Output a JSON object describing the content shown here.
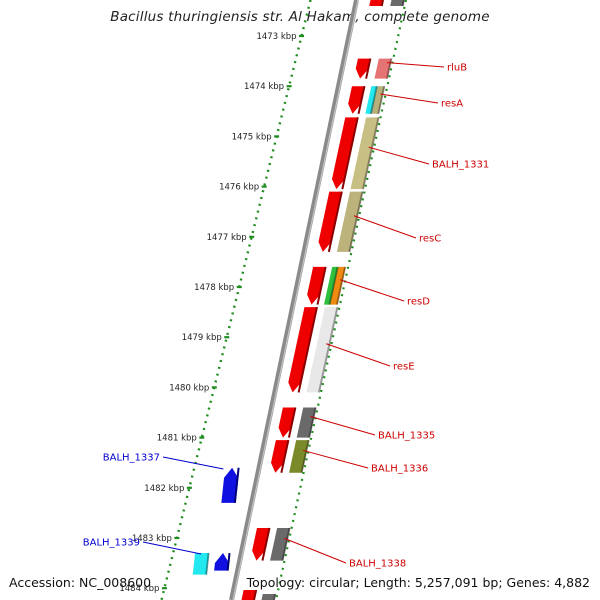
{
  "map": {
    "title": "Bacillus thuringiensis str. Al Hakam, complete genome"
  },
  "footer": {
    "accession": "Accession: NC_008600",
    "stats": "Topology: circular; Length: 5,257,091 bp; Genes: 4,882"
  },
  "ticks": [
    {
      "kbp": 1473,
      "label": "1473 kbp"
    },
    {
      "kbp": 1474,
      "label": "1474 kbp"
    },
    {
      "kbp": 1475,
      "label": "1475 kbp"
    },
    {
      "kbp": 1476,
      "label": "1476 kbp"
    },
    {
      "kbp": 1477,
      "label": "1477 kbp"
    },
    {
      "kbp": 1478,
      "label": "1478 kbp"
    },
    {
      "kbp": 1479,
      "label": "1479 kbp"
    },
    {
      "kbp": 1480,
      "label": "1480 kbp"
    },
    {
      "kbp": 1481,
      "label": "1481 kbp"
    },
    {
      "kbp": 1482,
      "label": "1482 kbp"
    },
    {
      "kbp": 1483,
      "label": "1483 kbp"
    },
    {
      "kbp": 1484,
      "label": "1484 kbp"
    }
  ],
  "genes": [
    {
      "name": "rluB",
      "strand": "+",
      "start_kbp": 1473.45,
      "end_kbp": 1473.85,
      "color": "#e57373"
    },
    {
      "name": "resA",
      "strand": "+",
      "start_kbp": 1474.0,
      "end_kbp": 1474.55,
      "color": "#b8b07a",
      "accent": "#22e8f0"
    },
    {
      "name": "BALH_1331",
      "strand": "+",
      "start_kbp": 1474.62,
      "end_kbp": 1476.05,
      "color": "#c8bf85"
    },
    {
      "name": "resC",
      "strand": "+",
      "start_kbp": 1476.1,
      "end_kbp": 1477.3,
      "color": "#bbb27c"
    },
    {
      "name": "resD",
      "strand": "+",
      "start_kbp": 1477.6,
      "end_kbp": 1478.35,
      "color": "#f08a10",
      "accent": "#2fbf3f"
    },
    {
      "name": "resE",
      "strand": "+",
      "start_kbp": 1478.4,
      "end_kbp": 1480.1,
      "color": "#e8e8e8"
    },
    {
      "name": "BALH_1335",
      "strand": "+",
      "start_kbp": 1480.4,
      "end_kbp": 1481.0,
      "color": "#6a6a6a"
    },
    {
      "name": "BALH_1336",
      "strand": "+",
      "start_kbp": 1481.05,
      "end_kbp": 1481.7,
      "color": "#7a8a2a"
    },
    {
      "name": "BALH_1337",
      "strand": "-",
      "start_kbp": 1481.6,
      "end_kbp": 1482.3,
      "color": "#1010e0"
    },
    {
      "name": "BALH_1338",
      "strand": "+",
      "start_kbp": 1482.8,
      "end_kbp": 1483.45,
      "color": "#6a6a6a"
    },
    {
      "name": "BALH_1339",
      "strand": "-",
      "start_kbp": 1483.3,
      "end_kbp": 1483.65,
      "color": "#22e8f0"
    }
  ],
  "colors": {
    "plus_strand_gene": "#ee0000",
    "minus_strand_gene": "#1010e0",
    "plus_label": "#cc0000",
    "minus_label": "#0000cc",
    "tick_dots": "#1e8c1e",
    "backbone": "#8a8a8a"
  }
}
